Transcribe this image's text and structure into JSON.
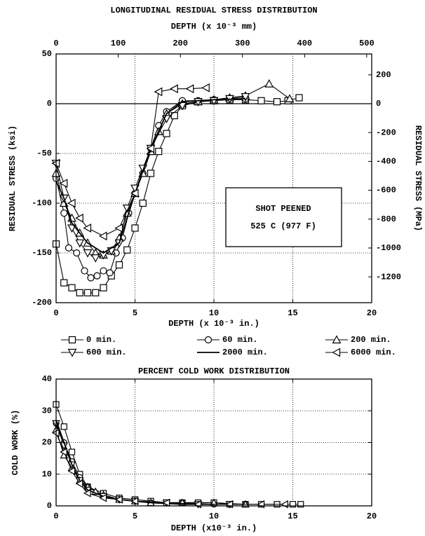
{
  "chart_data": [
    {
      "type": "line",
      "title": "LONGITUDINAL RESIDUAL STRESS DISTRIBUTION",
      "xlabel": "DEPTH (x 10⁻³ in.)",
      "ylabel": "RESIDUAL STRESS (ksi)",
      "x2label": "DEPTH (x 10⁻³ mm)",
      "y2label": "RESIDUAL STRESS (MPa)",
      "xlim": [
        0,
        20
      ],
      "xticks": [
        0,
        5,
        10,
        15,
        20
      ],
      "ylim": [
        -200,
        50
      ],
      "yticks": [
        -200,
        -150,
        -100,
        -50,
        0,
        50
      ],
      "x2lim": [
        0,
        508
      ],
      "x2ticks": [
        0,
        100,
        200,
        300,
        400,
        500
      ],
      "y2lim": [
        -1379,
        344.7
      ],
      "y2ticks": [
        -1200,
        -1000,
        -800,
        -600,
        -400,
        -200,
        0,
        200
      ],
      "grid": true,
      "annotation": [
        "SHOT PEENED",
        "525 C (977 F)"
      ],
      "series": [
        {
          "name": "0 min.",
          "marker": "square",
          "color": "#000",
          "x": [
            0,
            0.5,
            1,
            1.5,
            2,
            2.5,
            3,
            3.5,
            4,
            4.5,
            5,
            5.5,
            6,
            6.5,
            7,
            7.5,
            8,
            9,
            10,
            11,
            12,
            13,
            14,
            14.7,
            15.4
          ],
          "values": [
            -141,
            -180,
            -185,
            -190,
            -190,
            -190,
            -185,
            -173,
            -162,
            -147,
            -125,
            -100,
            -70,
            -48,
            -30,
            -12,
            -2,
            2,
            3,
            4,
            4,
            3,
            2,
            3,
            6
          ]
        },
        {
          "name": "60 min.",
          "marker": "circle",
          "color": "#000",
          "x": [
            0,
            0.5,
            0.8,
            1.3,
            1.8,
            2.2,
            2.6,
            3,
            3.4,
            3.8,
            4.2,
            4.6,
            5,
            5.5,
            6,
            6.5,
            7,
            8,
            9,
            10,
            12
          ],
          "values": [
            -75,
            -110,
            -145,
            -150,
            -168,
            -175,
            -173,
            -168,
            -170,
            -150,
            -135,
            -110,
            -90,
            -70,
            -45,
            -22,
            -8,
            3,
            3,
            4,
            5
          ]
        },
        {
          "name": "200 min.",
          "marker": "triangle-up",
          "color": "#000",
          "x": [
            0,
            0.5,
            1,
            1.5,
            2,
            2.5,
            3,
            3.5,
            4,
            4.5,
            5,
            5.5,
            6,
            6.5,
            7,
            8,
            9,
            10,
            11,
            12,
            13.5,
            14.8
          ],
          "values": [
            -70,
            -100,
            -115,
            -130,
            -140,
            -150,
            -152,
            -148,
            -135,
            -110,
            -90,
            -70,
            -48,
            -28,
            -10,
            0,
            2,
            4,
            6,
            8,
            20,
            5
          ]
        },
        {
          "name": "600 min.",
          "marker": "triangle-down",
          "color": "#000",
          "x": [
            0,
            0.5,
            1,
            1.5,
            2,
            2.5,
            3,
            3.5,
            4,
            4.5,
            5,
            5.5,
            6,
            7,
            8,
            9,
            10,
            11,
            12
          ],
          "values": [
            -60,
            -95,
            -125,
            -140,
            -150,
            -155,
            -152,
            -148,
            -140,
            -105,
            -85,
            -65,
            -45,
            -15,
            -2,
            2,
            3,
            5,
            7
          ]
        },
        {
          "name": "2000 min.",
          "marker": "none",
          "color": "#000",
          "x": [
            0,
            0.5,
            1,
            2,
            3,
            4,
            5,
            6,
            7,
            8,
            10,
            12
          ],
          "values": [
            -78,
            -95,
            -120,
            -140,
            -150,
            -140,
            -90,
            -45,
            -10,
            2,
            4,
            5
          ]
        },
        {
          "name": "6000 min.",
          "marker": "triangle-left",
          "color": "#000",
          "x": [
            0,
            0.5,
            1,
            1.5,
            2,
            3,
            4,
            5,
            6,
            6.5,
            7.5,
            8.5,
            9.5
          ],
          "values": [
            -60,
            -80,
            -100,
            -115,
            -125,
            -133,
            -125,
            -90,
            -45,
            12,
            15,
            15,
            16
          ]
        }
      ]
    },
    {
      "type": "line",
      "title": "PERCENT COLD WORK DISTRIBUTION",
      "xlabel": "DEPTH (x10⁻³ in.)",
      "ylabel": "COLD WORK (%)",
      "xlim": [
        0,
        20
      ],
      "xticks": [
        0,
        5,
        10,
        15,
        20
      ],
      "ylim": [
        0,
        40
      ],
      "yticks": [
        0,
        10,
        20,
        30,
        40
      ],
      "grid": true,
      "series": [
        {
          "marker": "square",
          "color": "#000",
          "x": [
            0,
            0.5,
            1,
            1.5,
            2,
            3,
            4,
            5,
            6,
            7,
            8,
            9,
            10,
            11,
            12,
            13,
            14,
            15,
            15.5
          ],
          "values": [
            32,
            25,
            17,
            10,
            6,
            4,
            2.5,
            2,
            1.5,
            1,
            1,
            1,
            1,
            0.5,
            0.5,
            0.5,
            0.5,
            0.5,
            0.5
          ]
        },
        {
          "marker": "circle",
          "color": "#000",
          "x": [
            0,
            0.5,
            1,
            1.5,
            2,
            3,
            4,
            5,
            6,
            8,
            10,
            12
          ],
          "values": [
            26,
            20,
            14,
            9,
            6,
            3,
            2,
            1.5,
            1,
            1,
            0.5,
            0.5
          ]
        },
        {
          "marker": "triangle-up",
          "color": "#000",
          "x": [
            0,
            0.5,
            1,
            1.5,
            2,
            2.5,
            3,
            4,
            5,
            6,
            8,
            10,
            12
          ],
          "values": [
            24,
            16,
            12,
            8,
            6,
            4.5,
            3.5,
            2,
            1.5,
            1,
            1,
            1,
            0.5
          ]
        },
        {
          "marker": "triangle-down",
          "color": "#000",
          "x": [
            0,
            0.5,
            1,
            1.5,
            2,
            3,
            4,
            5,
            7,
            9,
            11
          ],
          "values": [
            26,
            19,
            13,
            8,
            5,
            3,
            2,
            1.5,
            1,
            0.5,
            0.5
          ]
        },
        {
          "marker": "none",
          "color": "#000",
          "x": [
            0,
            0.5,
            1,
            1.5,
            2,
            3,
            4,
            6,
            8,
            10
          ],
          "values": [
            27,
            20,
            13,
            8,
            5,
            3,
            2,
            1,
            0.5,
            0.5
          ]
        },
        {
          "marker": "triangle-left",
          "color": "#000",
          "x": [
            0,
            0.5,
            1,
            1.5,
            2,
            3,
            4,
            5,
            7,
            9,
            11,
            13,
            14.5
          ],
          "values": [
            23,
            17,
            11,
            7,
            4,
            2.5,
            2,
            1.5,
            1,
            0.5,
            0.5,
            0.5,
            0.5
          ]
        }
      ]
    }
  ]
}
